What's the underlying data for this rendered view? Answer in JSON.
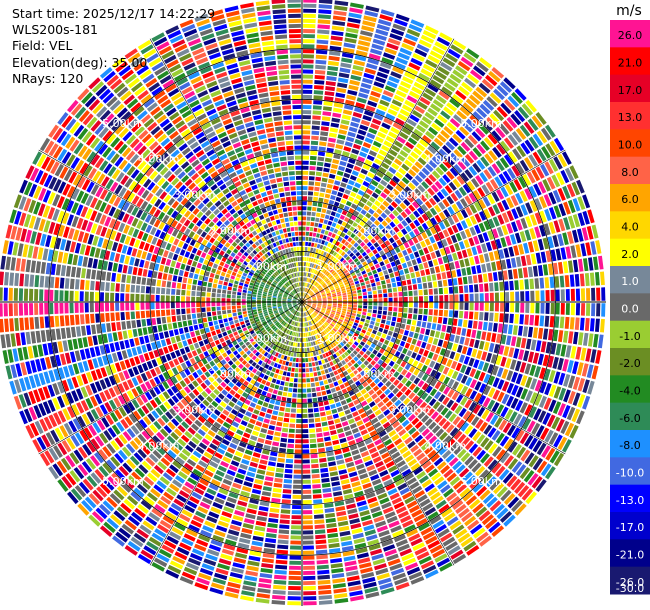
{
  "header": {
    "start_time": "Start time: 2025/12/17 14:22:29",
    "instrument": "WLS200s-181",
    "field": "Field: VEL",
    "elevation": "Elevation(deg): 35.00",
    "nrays": "NRays: 120"
  },
  "chart_data": {
    "type": "heatmap",
    "projection": "polar-ppi",
    "field": "VEL",
    "elevation_deg": 35.0,
    "n_rays": 120,
    "range_rings_km": [
      1,
      2,
      3,
      4,
      5
    ],
    "ring_labels": [
      "1.00km",
      "2.00km",
      "3.00km",
      "4.00km",
      "5.00km"
    ],
    "max_range_km": 6.0,
    "colorbar": {
      "unit": "m/s",
      "tick_labels": [
        "26.0",
        "21.0",
        "17.0",
        "13.0",
        "10.0",
        "8.0",
        "6.0",
        "4.0",
        "2.0",
        "1.0",
        "0.0",
        "-1.0",
        "-2.0",
        "-4.0",
        "-6.0",
        "-8.0",
        "-10.0",
        "-13.0",
        "-17.0",
        "-21.0",
        "-26.0",
        "-30.0"
      ],
      "colors": [
        "#ff1493",
        "#ff0000",
        "#e60026",
        "#ff3030",
        "#ff4500",
        "#ff6347",
        "#ffa500",
        "#ffd700",
        "#ffff00",
        "#778899",
        "#696969",
        "#9acd32",
        "#6b8e23",
        "#228b22",
        "#2e8b57",
        "#1e90ff",
        "#4169e1",
        "#0000ff",
        "#0000cd",
        "#00008b",
        "#191970"
      ],
      "range": [
        -30,
        30
      ]
    },
    "dominant_pattern": "Near-radar returns show positive (red/orange) velocities on the east side and negative (green/blue) on the west; beyond ~1 km the field is dominated by noise covering the full color range."
  }
}
